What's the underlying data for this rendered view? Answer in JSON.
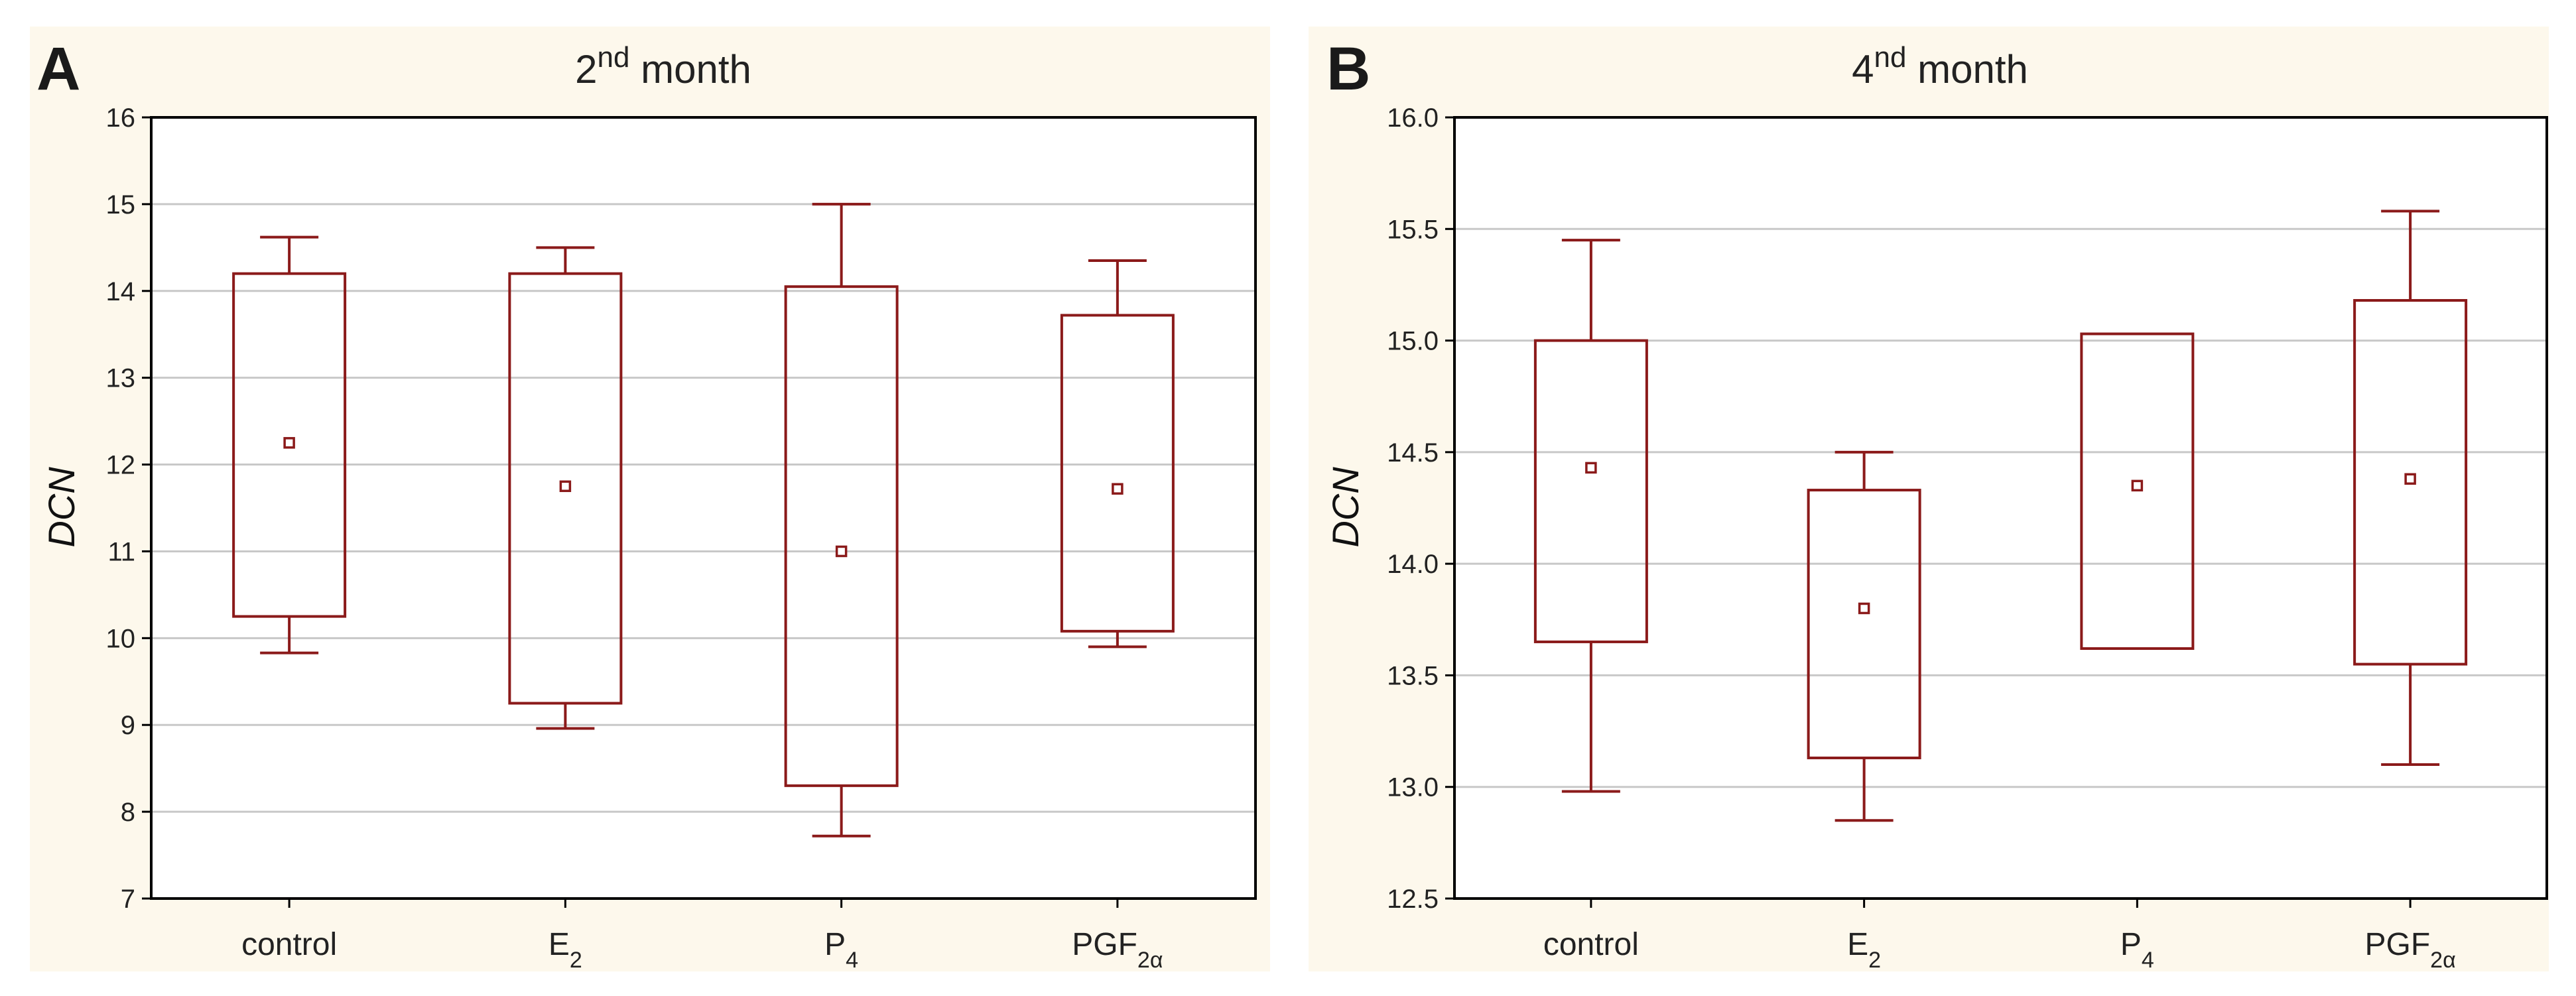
{
  "colors": {
    "box": "#8b1a1a",
    "panel_background": "#fdf8ec",
    "grid": "#c8c8c8"
  },
  "chart_data": [
    {
      "panel": "A",
      "type": "box",
      "title": {
        "base": "2",
        "sup": "nd",
        "rest": " month"
      },
      "xlabel": "",
      "ylabel": "DCN",
      "ylim": [
        7,
        16
      ],
      "yticks": [
        "7",
        "8",
        "9",
        "10",
        "11",
        "12",
        "13",
        "14",
        "15",
        "16"
      ],
      "grid": true,
      "categories": [
        {
          "base": "control",
          "sub": ""
        },
        {
          "base": "E",
          "sub": "2"
        },
        {
          "base": "P",
          "sub": "4"
        },
        {
          "base": "PGF",
          "sub": "2α"
        }
      ],
      "boxes": [
        {
          "mean": 12.25,
          "q1": 10.25,
          "q3": 14.2,
          "whisker_low": 9.83,
          "whisker_high": 14.62
        },
        {
          "mean": 11.75,
          "q1": 9.25,
          "q3": 14.2,
          "whisker_low": 8.96,
          "whisker_high": 14.5
        },
        {
          "mean": 11.0,
          "q1": 8.3,
          "q3": 14.05,
          "whisker_low": 7.72,
          "whisker_high": 15.0
        },
        {
          "mean": 11.72,
          "q1": 10.08,
          "q3": 13.72,
          "whisker_low": 9.9,
          "whisker_high": 14.35
        }
      ]
    },
    {
      "panel": "B",
      "type": "box",
      "title": {
        "base": "4",
        "sup": "nd",
        "rest": " month"
      },
      "xlabel": "",
      "ylabel": "DCN",
      "ylim": [
        12.5,
        16.0
      ],
      "yticks": [
        "12.5",
        "13.0",
        "13.5",
        "14.0",
        "14.5",
        "15.0",
        "15.5",
        "16.0"
      ],
      "grid": true,
      "categories": [
        {
          "base": "control",
          "sub": ""
        },
        {
          "base": "E",
          "sub": "2"
        },
        {
          "base": "P",
          "sub": "4"
        },
        {
          "base": "PGF",
          "sub": "2α"
        }
      ],
      "boxes": [
        {
          "mean": 14.43,
          "q1": 13.65,
          "q3": 15.0,
          "whisker_low": 12.98,
          "whisker_high": 15.45
        },
        {
          "mean": 13.8,
          "q1": 13.13,
          "q3": 14.33,
          "whisker_low": 12.85,
          "whisker_high": 14.5
        },
        {
          "mean": 14.35,
          "q1": 13.62,
          "q3": 15.03,
          "whisker_low": null,
          "whisker_high": null
        },
        {
          "mean": 14.38,
          "q1": 13.55,
          "q3": 15.18,
          "whisker_low": 13.1,
          "whisker_high": 15.58
        }
      ]
    }
  ]
}
